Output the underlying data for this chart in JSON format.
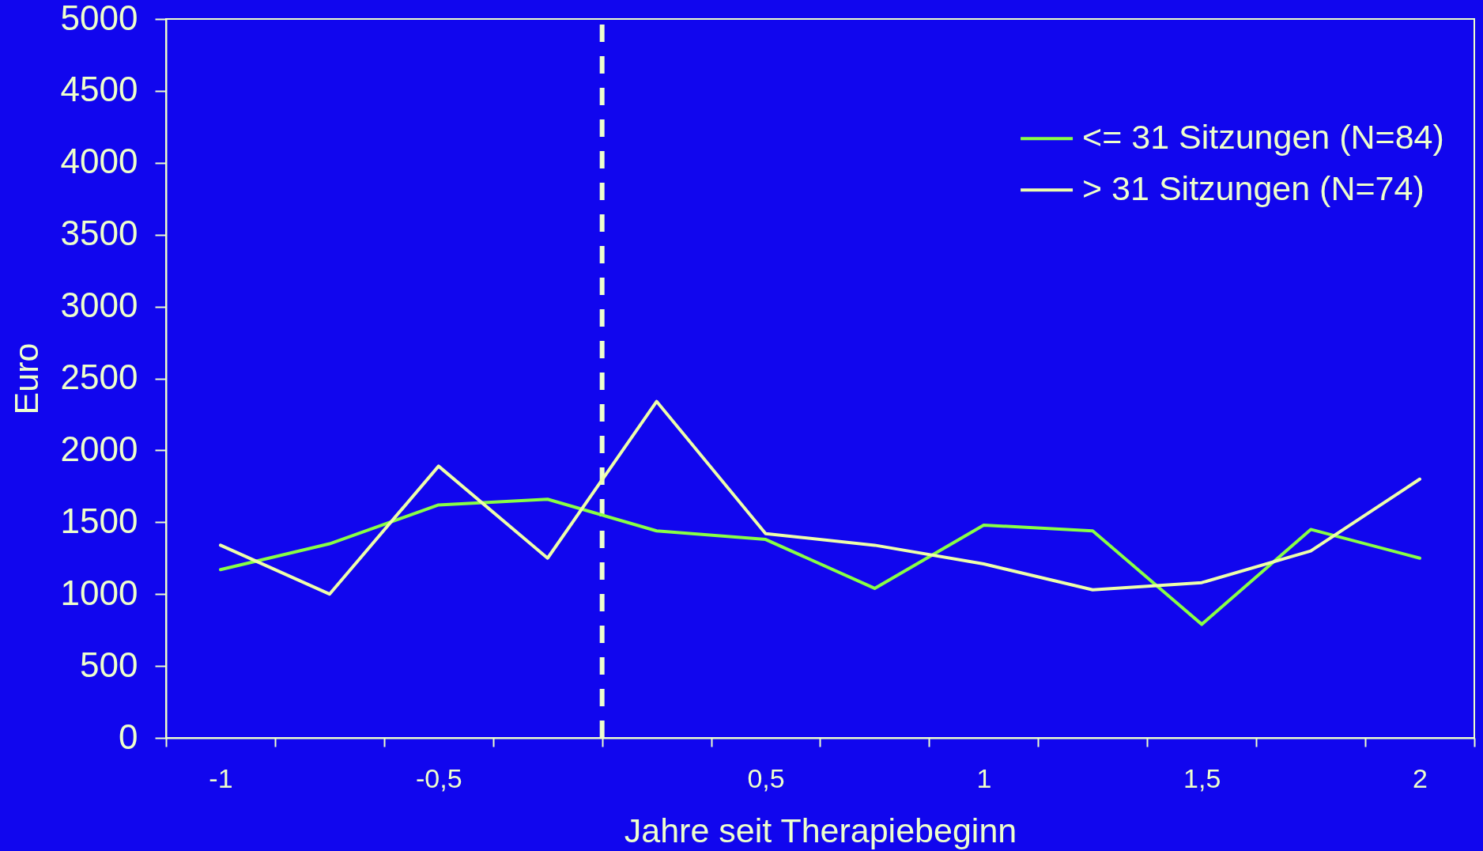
{
  "chart_data": {
    "type": "line",
    "xlabel": "Jahre seit Therapiebeginn",
    "ylabel": "Euro",
    "categories": [
      "-1",
      null,
      "-0,5",
      null,
      null,
      "0,5",
      null,
      "1",
      null,
      "1,5",
      null,
      "2"
    ],
    "series": [
      {
        "name": "<= 31 Sitzungen (N=84)",
        "color": "#88ff44",
        "values": [
          1170,
          1350,
          1620,
          1660,
          1440,
          1380,
          1040,
          1480,
          1440,
          790,
          1450,
          1250
        ]
      },
      {
        "name": "> 31 Sitzungen (N=74)",
        "color": "#eeffaa",
        "values": [
          1340,
          1000,
          1890,
          1250,
          2340,
          1420,
          1340,
          1210,
          1030,
          1080,
          1300,
          1800
        ]
      }
    ],
    "ylim": [
      0,
      5000
    ],
    "yticks": [
      0,
      500,
      1000,
      1500,
      2000,
      2500,
      3000,
      3500,
      4000,
      4500,
      5000
    ],
    "legend": "top right",
    "line_style": "solid"
  }
}
